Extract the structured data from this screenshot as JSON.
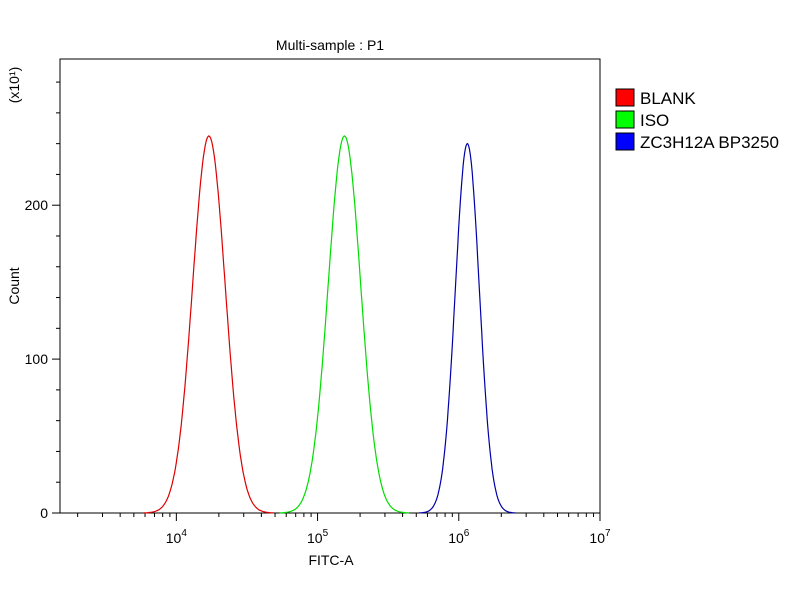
{
  "chart_data": {
    "type": "histogram",
    "title": "Multi-sample : P1",
    "xlabel": "FITC-A",
    "ylabel": "Count",
    "y_multiplier": "(x10¹)",
    "x_scale": "log",
    "xlim": [
      1500,
      10000000
    ],
    "ylim": [
      0,
      295
    ],
    "x_ticks": [
      {
        "value": 10000,
        "base": "10",
        "exp": "4"
      },
      {
        "value": 100000,
        "base": "10",
        "exp": "5"
      },
      {
        "value": 1000000,
        "base": "10",
        "exp": "6"
      },
      {
        "value": 10000000,
        "base": "10",
        "exp": "7"
      }
    ],
    "y_ticks": [
      {
        "value": 0,
        "label": "0"
      },
      {
        "value": 100,
        "label": "100"
      },
      {
        "value": 200,
        "label": "200"
      }
    ],
    "series": [
      {
        "name": "BLANK",
        "color": "#dd0000",
        "swatch": "#ff0000",
        "peak_x": 17000,
        "peak_y": 245,
        "sigma_log10": 0.115
      },
      {
        "name": "ISO",
        "color": "#00dd00",
        "swatch": "#00ff00",
        "peak_x": 155000,
        "peak_y": 245,
        "sigma_log10": 0.115
      },
      {
        "name": "ZC3H12A BP3250",
        "color": "#0000aa",
        "swatch": "#0000ff",
        "peak_x": 1150000,
        "peak_y": 240,
        "sigma_log10": 0.085
      }
    ],
    "legend_position": "right",
    "grid": false
  }
}
